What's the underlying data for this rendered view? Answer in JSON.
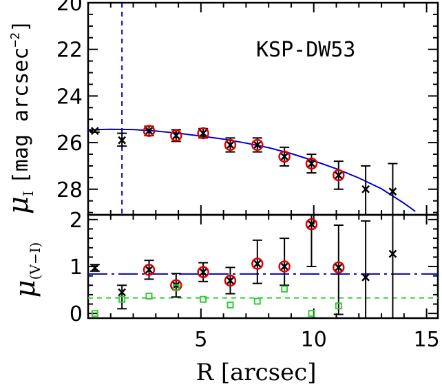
{
  "chart_data": [
    {
      "type": "scatter",
      "panel": "top",
      "title": "KSP-DW53",
      "xlabel": "R [arcsec]",
      "ylabel": "μ_I [mag arcsec⁻²]",
      "ylabel_main": "μ",
      "ylabel_sub": "I",
      "ylabel_unit": "[mag arcsec",
      "ylabel_sup": "−2",
      "ylabel_close": "]",
      "xlim": [
        0,
        15.5
      ],
      "ylim": [
        29.1,
        20
      ],
      "y_inverted": true,
      "xticks": [
        5,
        10,
        15
      ],
      "yticks": [
        20,
        22,
        24,
        26,
        28
      ],
      "vline_x": 1.5,
      "series": [
        {
          "marker": "cross",
          "x": [
            0.3,
            1.5,
            2.7,
            3.9,
            5.1,
            6.3,
            7.5,
            8.7,
            9.9,
            11.1,
            12.3,
            13.5
          ],
          "y": [
            25.5,
            25.9,
            25.5,
            25.7,
            25.6,
            26.1,
            26.1,
            26.6,
            26.9,
            27.4,
            28.0,
            28.1
          ],
          "err_lo": [
            0.05,
            0.3,
            0.2,
            0.25,
            0.2,
            0.3,
            0.3,
            0.4,
            0.4,
            0.6,
            1.0,
            1.2
          ],
          "err_hi": [
            0.05,
            0.25,
            0.2,
            0.25,
            0.2,
            0.3,
            0.3,
            0.4,
            0.4,
            0.6,
            1.1,
            1.3
          ]
        },
        {
          "marker": "circle",
          "color": "#e00000",
          "x": [
            2.7,
            3.9,
            5.1,
            6.3,
            7.5,
            8.7,
            9.9,
            11.1
          ],
          "y": [
            25.5,
            25.7,
            25.6,
            26.1,
            26.1,
            26.6,
            26.9,
            27.4
          ]
        }
      ],
      "fit": {
        "color": "#0000cc",
        "x": [
          0,
          1,
          2,
          3,
          4,
          5,
          6,
          7,
          8,
          9,
          10,
          11,
          12,
          13,
          14,
          14.5
        ],
        "y": [
          25.45,
          25.43,
          25.44,
          25.5,
          25.6,
          25.72,
          25.85,
          26.02,
          26.22,
          26.47,
          26.78,
          27.12,
          27.52,
          27.98,
          28.6,
          28.95
        ]
      }
    },
    {
      "type": "scatter",
      "panel": "bottom",
      "xlabel": "R [arcsec]",
      "ylabel": "μ_(V−I)",
      "ylabel_main": "μ",
      "ylabel_sub": "(V−I)",
      "xlim": [
        0,
        15.5
      ],
      "ylim": [
        -0.1,
        2.1
      ],
      "xticks": [
        5,
        10,
        15
      ],
      "yticks": [
        0,
        1,
        2
      ],
      "hline_blue": 0.84,
      "hline_green": 0.33,
      "series": [
        {
          "marker": "cross",
          "x": [
            0.3,
            1.5,
            2.7,
            3.9,
            5.1,
            6.3,
            7.5,
            8.7,
            9.9,
            11.1,
            12.3,
            13.5
          ],
          "y": [
            0.97,
            0.45,
            0.93,
            0.6,
            0.88,
            0.7,
            1.06,
            1.0,
            1.9,
            0.98,
            0.77,
            1.27
          ],
          "err_lo": [
            0.07,
            0.35,
            0.2,
            0.25,
            0.2,
            0.28,
            0.42,
            0.4,
            0.9,
            1.0,
            0.9,
            1.4
          ],
          "err_hi": [
            0.07,
            0.15,
            0.2,
            0.25,
            0.2,
            0.28,
            0.5,
            0.6,
            0.9,
            0.9,
            1.2,
            1.4
          ]
        },
        {
          "marker": "circle",
          "color": "#e00000",
          "x": [
            2.7,
            3.9,
            5.1,
            6.3,
            7.5,
            8.7,
            9.9,
            11.1
          ],
          "y": [
            0.93,
            0.6,
            0.88,
            0.7,
            1.06,
            1.0,
            1.9,
            0.98
          ]
        },
        {
          "marker": "square",
          "color": "#33cc33",
          "x": [
            0.3,
            1.5,
            2.7,
            3.9,
            5.1,
            6.3,
            7.5,
            8.7,
            9.9,
            11.1
          ],
          "y": [
            0.0,
            0.3,
            0.37,
            0.55,
            0.3,
            0.18,
            0.26,
            0.52,
            0.0,
            0.16
          ]
        }
      ]
    }
  ]
}
